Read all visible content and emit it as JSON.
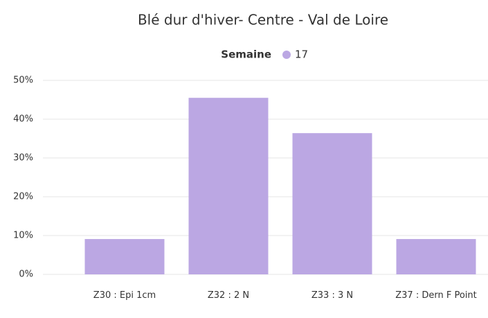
{
  "chart_data": {
    "type": "bar",
    "title": "Blé dur d'hiver- Centre - Val de Loire",
    "legend_title": "Semaine",
    "categories": [
      "Z30 : Epi 1cm",
      "Z32 : 2 N",
      "Z33 : 3 N",
      "Z37 : Dern F Point"
    ],
    "series": [
      {
        "name": "17",
        "color": "#bba7e3",
        "values": [
          9.1,
          45.5,
          36.4,
          9.1
        ]
      }
    ],
    "ylim": [
      0,
      50
    ],
    "yticks": [
      {
        "value": 0,
        "label": "0%"
      },
      {
        "value": 10,
        "label": "10%"
      },
      {
        "value": 20,
        "label": "20%"
      },
      {
        "value": 30,
        "label": "30%"
      },
      {
        "value": 40,
        "label": "40%"
      },
      {
        "value": 50,
        "label": "50%"
      }
    ],
    "grid": true
  }
}
